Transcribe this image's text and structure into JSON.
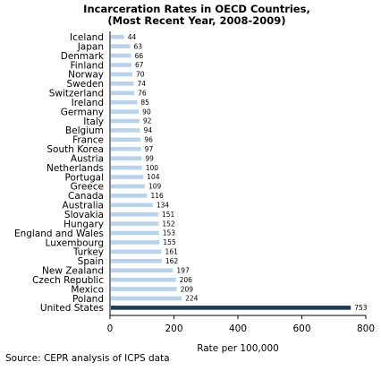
{
  "chart_data": {
    "type": "bar",
    "orientation": "horizontal",
    "title_lines": [
      "Incarceration Rates in OECD Countries,",
      "(Most Recent Year, 2008-2009)"
    ],
    "categories": [
      "Iceland",
      "Japan",
      "Denmark",
      "Finland",
      "Norway",
      "Sweden",
      "Switzerland",
      "Ireland",
      "Germany",
      "Italy",
      "Belgium",
      "France",
      "South Korea",
      "Austria",
      "Netherlands",
      "Portugal",
      "Greece",
      "Canada",
      "Australia",
      "Slovakia",
      "Hungary",
      "England and Wales",
      "Luxembourg",
      "Turkey",
      "Spain",
      "New Zealand",
      "Czech Republic",
      "Mexico",
      "Poland",
      "United States"
    ],
    "values": [
      44,
      63,
      66,
      67,
      70,
      74,
      76,
      85,
      90,
      92,
      94,
      96,
      97,
      99,
      100,
      104,
      109,
      116,
      134,
      151,
      152,
      153,
      155,
      161,
      162,
      197,
      206,
      209,
      224,
      753
    ],
    "data_labels": [
      "44",
      "63",
      "66",
      "67",
      "70",
      "74",
      "76",
      "85",
      "90",
      "92",
      "94",
      "96",
      "97",
      "99",
      "100",
      "104",
      "109",
      "116",
      "134",
      "151",
      "152",
      "153",
      "155",
      "161",
      "162",
      "197",
      "206",
      "209",
      "224",
      "753"
    ],
    "xlabel": "Rate per 100,000",
    "ylabel": "",
    "xlim": [
      0,
      800
    ],
    "ticks": [
      "0",
      "200",
      "400",
      "600",
      "800"
    ],
    "tick_values": [
      0,
      200,
      400,
      600,
      800
    ],
    "grid": false,
    "legend": "none",
    "colors": {
      "bar": "#b8d3ed",
      "highlight": "#1f3b5c",
      "axis": "#000000"
    },
    "highlight_index": 29
  },
  "source": "Source: CEPR analysis of ICPS data"
}
